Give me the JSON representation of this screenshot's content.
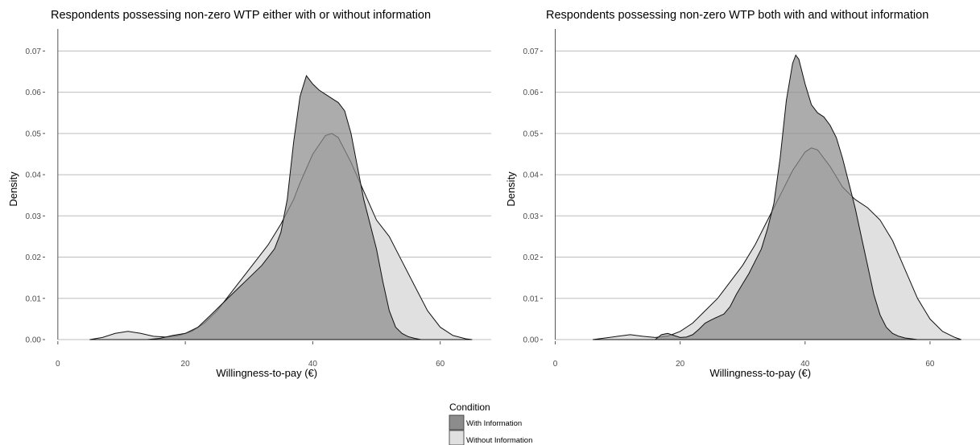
{
  "legend": {
    "title": "Condition",
    "entries": [
      {
        "label": "With Information",
        "color": "#8c8c8c"
      },
      {
        "label": "Without Information",
        "color": "#e0e0e0"
      }
    ]
  },
  "chart_data": [
    {
      "type": "area",
      "title": "Respondents possessing non-zero WTP either with or without information",
      "xlabel": "Willingness-to-pay (€)",
      "ylabel": "Density",
      "xlim": [
        -2,
        68
      ],
      "ylim": [
        0,
        0.073
      ],
      "xticks": [
        0,
        20,
        40,
        60
      ],
      "yticks": [
        0.0,
        0.01,
        0.02,
        0.03,
        0.04,
        0.05,
        0.06,
        0.07
      ],
      "grid": true,
      "series": [
        {
          "name": "Without Information",
          "color": "#e0e0e0",
          "x": [
            5,
            7,
            9,
            11,
            13,
            15,
            17,
            19,
            21,
            23,
            25,
            27,
            29,
            31,
            33,
            35,
            37,
            38,
            40,
            42,
            43,
            44,
            46,
            48,
            50,
            52,
            54,
            56,
            58,
            60,
            62,
            64,
            65
          ],
          "y": [
            0.0,
            0.0005,
            0.0015,
            0.002,
            0.0015,
            0.0008,
            0.0006,
            0.001,
            0.002,
            0.004,
            0.007,
            0.011,
            0.015,
            0.019,
            0.023,
            0.028,
            0.034,
            0.038,
            0.045,
            0.0495,
            0.05,
            0.049,
            0.043,
            0.036,
            0.029,
            0.025,
            0.019,
            0.013,
            0.007,
            0.003,
            0.001,
            0.0002,
            0.0
          ]
        },
        {
          "name": "With Information",
          "color": "#8c8c8c",
          "x": [
            14,
            16,
            18,
            20,
            22,
            24,
            26,
            28,
            30,
            32,
            34,
            35,
            36,
            37,
            38,
            39,
            40,
            41,
            42,
            43,
            44,
            45,
            46,
            47,
            48,
            49,
            50,
            51,
            52,
            53,
            54,
            55,
            56,
            57
          ],
          "y": [
            0.0,
            0.0003,
            0.001,
            0.0015,
            0.003,
            0.006,
            0.009,
            0.012,
            0.015,
            0.018,
            0.022,
            0.026,
            0.034,
            0.048,
            0.059,
            0.064,
            0.062,
            0.0605,
            0.0595,
            0.0585,
            0.0575,
            0.0555,
            0.05,
            0.042,
            0.034,
            0.028,
            0.022,
            0.014,
            0.007,
            0.003,
            0.0015,
            0.0007,
            0.0003,
            0.0
          ]
        }
      ]
    },
    {
      "type": "area",
      "title": "Respondents possessing non-zero WTP both with and without information",
      "xlabel": "Willingness-to-pay (€)",
      "ylabel": "Density",
      "xlim": [
        -2,
        68
      ],
      "ylim": [
        0,
        0.073
      ],
      "xticks": [
        0,
        20,
        40,
        60
      ],
      "yticks": [
        0.0,
        0.01,
        0.02,
        0.03,
        0.04,
        0.05,
        0.06,
        0.07
      ],
      "grid": true,
      "series": [
        {
          "name": "Without Information",
          "color": "#e0e0e0",
          "x": [
            6,
            8,
            10,
            12,
            14,
            16,
            18,
            20,
            22,
            24,
            26,
            28,
            30,
            32,
            34,
            36,
            38,
            40,
            41,
            42,
            44,
            46,
            48,
            50,
            52,
            54,
            56,
            58,
            60,
            62,
            64,
            65
          ],
          "y": [
            0.0,
            0.0004,
            0.0008,
            0.0012,
            0.0008,
            0.0005,
            0.0008,
            0.002,
            0.004,
            0.007,
            0.01,
            0.014,
            0.018,
            0.023,
            0.029,
            0.035,
            0.041,
            0.0455,
            0.0465,
            0.046,
            0.042,
            0.037,
            0.034,
            0.032,
            0.029,
            0.024,
            0.017,
            0.01,
            0.005,
            0.002,
            0.0005,
            0.0
          ]
        },
        {
          "name": "With Information",
          "color": "#8c8c8c",
          "x": [
            16,
            17,
            18,
            19,
            20,
            21,
            22,
            23,
            24,
            25,
            26,
            27,
            28,
            29,
            30,
            31,
            32,
            33,
            34,
            35,
            36,
            37,
            38,
            38.5,
            39,
            40,
            41,
            42,
            43,
            44,
            45,
            46,
            47,
            48,
            49,
            50,
            51,
            52,
            53,
            54,
            55,
            56,
            57,
            58
          ],
          "y": [
            0.0,
            0.0012,
            0.0015,
            0.001,
            0.0005,
            0.0006,
            0.0012,
            0.0025,
            0.004,
            0.0048,
            0.0055,
            0.0062,
            0.008,
            0.011,
            0.0135,
            0.016,
            0.019,
            0.022,
            0.027,
            0.033,
            0.044,
            0.058,
            0.067,
            0.069,
            0.068,
            0.062,
            0.057,
            0.055,
            0.054,
            0.052,
            0.049,
            0.044,
            0.038,
            0.032,
            0.025,
            0.018,
            0.011,
            0.006,
            0.003,
            0.0015,
            0.0008,
            0.0004,
            0.0002,
            0.0
          ]
        }
      ]
    }
  ]
}
